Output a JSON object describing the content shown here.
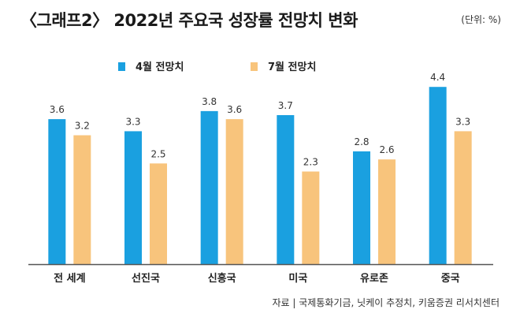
{
  "header": {
    "title": "〈그래프2〉 2022년 주요국 성장률 전망치 변화",
    "unit": "(단위: %)"
  },
  "footer": {
    "source": "자료 | 국제통화기금, 닛케이 추정치, 키움증권 리서치센터"
  },
  "colors": {
    "april": "#1aa0e0",
    "july": "#f8c47c",
    "axis": "#555555"
  },
  "chart_data": {
    "type": "bar",
    "title": "〈그래프2〉 2022년 주요국 성장률 전망치 변화",
    "unit": "(단위: %)",
    "xlabel": "",
    "ylabel": "",
    "ylim": [
      0,
      4.6
    ],
    "grid": false,
    "legend_position": "top-left",
    "categories": [
      "전 세계",
      "선진국",
      "신흥국",
      "미국",
      "유로존",
      "중국"
    ],
    "series": [
      {
        "name": "4월 전망치",
        "color": "#1aa0e0",
        "values": [
          3.6,
          3.3,
          3.8,
          3.7,
          2.8,
          4.4
        ],
        "labels": [
          "3.6",
          "3.3",
          "3.8",
          "3.7",
          "2.8",
          "4.4"
        ]
      },
      {
        "name": "7월 전망치",
        "color": "#f8c47c",
        "values": [
          3.2,
          2.5,
          3.6,
          2.3,
          2.6,
          3.3
        ],
        "labels": [
          "3.2",
          "2.5",
          "3.6",
          "2.3",
          "2.6",
          "3.3"
        ]
      }
    ]
  }
}
